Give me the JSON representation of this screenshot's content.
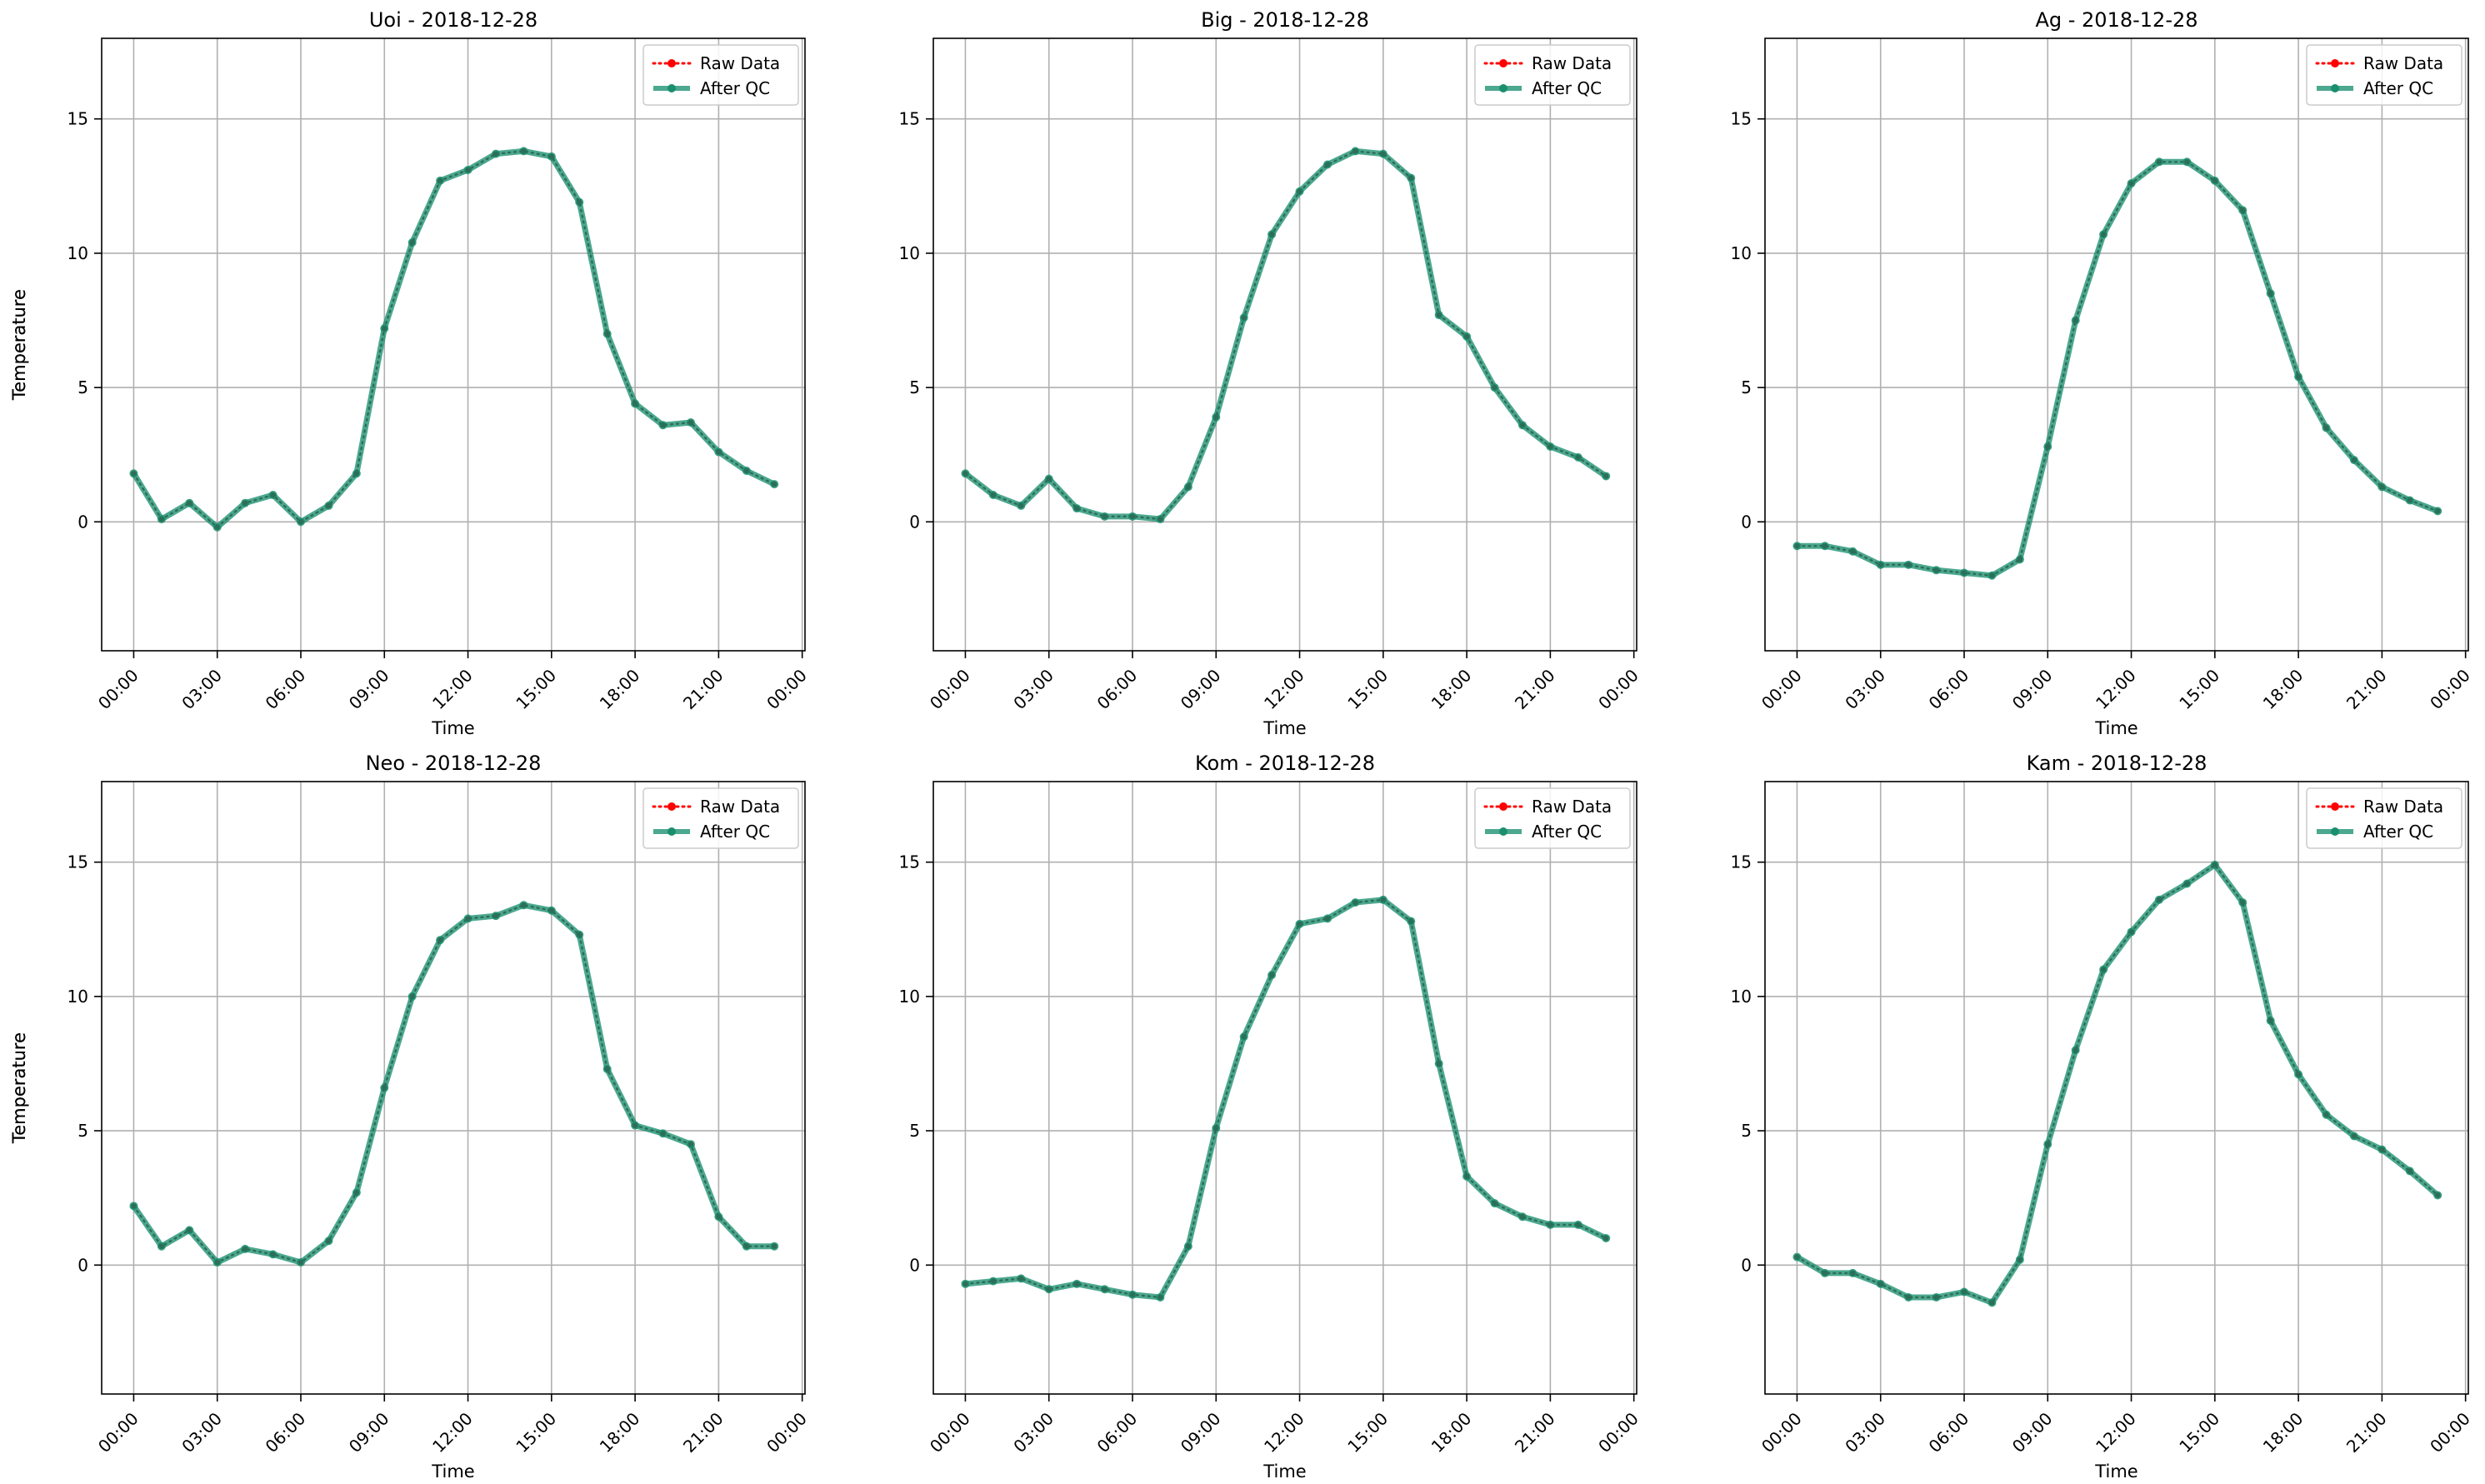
{
  "colors": {
    "raw": "#ff0000",
    "qc": "#1a8f70",
    "marker": "#2d6e56",
    "grid": "#b0b0b0",
    "axis": "#000000"
  },
  "legend": {
    "raw_label": "Raw Data",
    "qc_label": "After QC",
    "placement": "top-right"
  },
  "chart_data": [
    {
      "type": "line",
      "title": "Uoi - 2018-12-28",
      "xlabel": "Time",
      "ylabel": "Temperature",
      "grid": true,
      "ylim": [
        -4.8,
        18
      ],
      "xlim": [
        "00:00",
        "00:00"
      ],
      "x_ticks": [
        "00:00",
        "03:00",
        "06:00",
        "09:00",
        "12:00",
        "15:00",
        "18:00",
        "21:00",
        "00:00"
      ],
      "y_ticks": [
        0,
        5,
        10,
        15
      ],
      "x_hours": [
        0,
        1,
        2,
        3,
        4,
        5,
        6,
        7,
        8,
        9,
        10,
        11,
        12,
        13,
        14,
        15,
        16,
        17,
        18,
        19,
        20,
        21,
        22,
        23
      ],
      "series": [
        {
          "name": "Raw Data",
          "values": [
            1.8,
            0.1,
            0.7,
            -0.2,
            0.7,
            1.0,
            0.0,
            0.6,
            1.8,
            7.2,
            10.4,
            12.7,
            13.1,
            13.7,
            13.8,
            13.6,
            11.9,
            7.0,
            4.4,
            3.6,
            3.7,
            2.6,
            1.9,
            1.4
          ]
        },
        {
          "name": "After QC",
          "values": [
            1.8,
            0.1,
            0.7,
            -0.2,
            0.7,
            1.0,
            0.0,
            0.6,
            1.8,
            7.2,
            10.4,
            12.7,
            13.1,
            13.7,
            13.8,
            13.6,
            11.9,
            7.0,
            4.4,
            3.6,
            3.7,
            2.6,
            1.9,
            1.4
          ]
        }
      ]
    },
    {
      "type": "line",
      "title": "Big - 2018-12-28",
      "xlabel": "Time",
      "ylabel": "Temperature",
      "grid": true,
      "ylim": [
        -4.8,
        18
      ],
      "xlim": [
        "00:00",
        "00:00"
      ],
      "x_ticks": [
        "00:00",
        "03:00",
        "06:00",
        "09:00",
        "12:00",
        "15:00",
        "18:00",
        "21:00",
        "00:00"
      ],
      "y_ticks": [
        0,
        5,
        10,
        15
      ],
      "x_hours": [
        0,
        1,
        2,
        3,
        4,
        5,
        6,
        7,
        8,
        9,
        10,
        11,
        12,
        13,
        14,
        15,
        16,
        17,
        18,
        19,
        20,
        21,
        22,
        23
      ],
      "series": [
        {
          "name": "Raw Data",
          "values": [
            1.8,
            1.0,
            0.6,
            1.6,
            0.5,
            0.2,
            0.2,
            0.1,
            1.3,
            3.9,
            7.6,
            10.7,
            12.3,
            13.3,
            13.8,
            13.7,
            12.8,
            7.7,
            6.9,
            5.0,
            3.6,
            2.8,
            2.4,
            1.7
          ]
        },
        {
          "name": "After QC",
          "values": [
            1.8,
            1.0,
            0.6,
            1.6,
            0.5,
            0.2,
            0.2,
            0.1,
            1.3,
            3.9,
            7.6,
            10.7,
            12.3,
            13.3,
            13.8,
            13.7,
            12.8,
            7.7,
            6.9,
            5.0,
            3.6,
            2.8,
            2.4,
            1.7
          ]
        }
      ]
    },
    {
      "type": "line",
      "title": "Ag - 2018-12-28",
      "xlabel": "Time",
      "ylabel": "Temperature",
      "grid": true,
      "ylim": [
        -4.8,
        18
      ],
      "xlim": [
        "00:00",
        "00:00"
      ],
      "x_ticks": [
        "00:00",
        "03:00",
        "06:00",
        "09:00",
        "12:00",
        "15:00",
        "18:00",
        "21:00",
        "00:00"
      ],
      "y_ticks": [
        0,
        5,
        10,
        15
      ],
      "x_hours": [
        0,
        1,
        2,
        3,
        4,
        5,
        6,
        7,
        8,
        9,
        10,
        11,
        12,
        13,
        14,
        15,
        16,
        17,
        18,
        19,
        20,
        21,
        22,
        23
      ],
      "series": [
        {
          "name": "Raw Data",
          "values": [
            -0.9,
            -0.9,
            -1.1,
            -1.6,
            -1.6,
            -1.8,
            -1.9,
            -2.0,
            -1.4,
            2.8,
            7.5,
            10.7,
            12.6,
            13.4,
            13.4,
            12.7,
            11.6,
            8.5,
            5.4,
            3.5,
            2.3,
            1.3,
            0.8,
            0.4
          ]
        },
        {
          "name": "After QC",
          "values": [
            -0.9,
            -0.9,
            -1.1,
            -1.6,
            -1.6,
            -1.8,
            -1.9,
            -2.0,
            -1.4,
            2.8,
            7.5,
            10.7,
            12.6,
            13.4,
            13.4,
            12.7,
            11.6,
            8.5,
            5.4,
            3.5,
            2.3,
            1.3,
            0.8,
            0.4
          ]
        }
      ]
    },
    {
      "type": "line",
      "title": "Neo - 2018-12-28",
      "xlabel": "Time",
      "ylabel": "Temperature",
      "grid": true,
      "ylim": [
        -4.8,
        18
      ],
      "xlim": [
        "00:00",
        "00:00"
      ],
      "x_ticks": [
        "00:00",
        "03:00",
        "06:00",
        "09:00",
        "12:00",
        "15:00",
        "18:00",
        "21:00",
        "00:00"
      ],
      "y_ticks": [
        0,
        5,
        10,
        15
      ],
      "x_hours": [
        0,
        1,
        2,
        3,
        4,
        5,
        6,
        7,
        8,
        9,
        10,
        11,
        12,
        13,
        14,
        15,
        16,
        17,
        18,
        19,
        20,
        21,
        22,
        23
      ],
      "series": [
        {
          "name": "Raw Data",
          "values": [
            2.2,
            0.7,
            1.3,
            0.1,
            0.6,
            0.4,
            0.1,
            0.9,
            2.7,
            6.6,
            10.0,
            12.1,
            12.9,
            13.0,
            13.4,
            13.2,
            12.3,
            7.3,
            5.2,
            4.9,
            4.5,
            1.8,
            0.7,
            0.7
          ]
        },
        {
          "name": "After QC",
          "values": [
            2.2,
            0.7,
            1.3,
            0.1,
            0.6,
            0.4,
            0.1,
            0.9,
            2.7,
            6.6,
            10.0,
            12.1,
            12.9,
            13.0,
            13.4,
            13.2,
            12.3,
            7.3,
            5.2,
            4.9,
            4.5,
            1.8,
            0.7,
            0.7
          ]
        }
      ]
    },
    {
      "type": "line",
      "title": "Kom - 2018-12-28",
      "xlabel": "Time",
      "ylabel": "Temperature",
      "grid": true,
      "ylim": [
        -4.8,
        18
      ],
      "xlim": [
        "00:00",
        "00:00"
      ],
      "x_ticks": [
        "00:00",
        "03:00",
        "06:00",
        "09:00",
        "12:00",
        "15:00",
        "18:00",
        "21:00",
        "00:00"
      ],
      "y_ticks": [
        0,
        5,
        10,
        15
      ],
      "x_hours": [
        0,
        1,
        2,
        3,
        4,
        5,
        6,
        7,
        8,
        9,
        10,
        11,
        12,
        13,
        14,
        15,
        16,
        17,
        18,
        19,
        20,
        21,
        22,
        23
      ],
      "series": [
        {
          "name": "Raw Data",
          "values": [
            -0.7,
            -0.6,
            -0.5,
            -0.9,
            -0.7,
            -0.9,
            -1.1,
            -1.2,
            0.7,
            5.1,
            8.5,
            10.8,
            12.7,
            12.9,
            13.5,
            13.6,
            12.8,
            7.5,
            3.3,
            2.3,
            1.8,
            1.5,
            1.5,
            1.0
          ]
        },
        {
          "name": "After QC",
          "values": [
            -0.7,
            -0.6,
            -0.5,
            -0.9,
            -0.7,
            -0.9,
            -1.1,
            -1.2,
            0.7,
            5.1,
            8.5,
            10.8,
            12.7,
            12.9,
            13.5,
            13.6,
            12.8,
            7.5,
            3.3,
            2.3,
            1.8,
            1.5,
            1.5,
            1.0
          ]
        }
      ]
    },
    {
      "type": "line",
      "title": "Kam - 2018-12-28",
      "xlabel": "Time",
      "ylabel": "Temperature",
      "grid": true,
      "ylim": [
        -4.8,
        18
      ],
      "xlim": [
        "00:00",
        "00:00"
      ],
      "x_ticks": [
        "00:00",
        "03:00",
        "06:00",
        "09:00",
        "12:00",
        "15:00",
        "18:00",
        "21:00",
        "00:00"
      ],
      "y_ticks": [
        0,
        5,
        10,
        15
      ],
      "x_hours": [
        0,
        1,
        2,
        3,
        4,
        5,
        6,
        7,
        8,
        9,
        10,
        11,
        12,
        13,
        14,
        15,
        16,
        17,
        18,
        19,
        20,
        21,
        22,
        23
      ],
      "series": [
        {
          "name": "Raw Data",
          "values": [
            0.3,
            -0.3,
            -0.3,
            -0.7,
            -1.2,
            -1.2,
            -1.0,
            -1.4,
            0.2,
            4.5,
            8.0,
            11.0,
            12.4,
            13.6,
            14.2,
            14.9,
            13.5,
            9.1,
            7.1,
            5.6,
            4.8,
            4.3,
            3.5,
            2.6
          ]
        },
        {
          "name": "After QC",
          "values": [
            0.3,
            -0.3,
            -0.3,
            -0.7,
            -1.2,
            -1.2,
            -1.0,
            -1.4,
            0.2,
            4.5,
            8.0,
            11.0,
            12.4,
            13.6,
            14.2,
            14.9,
            13.5,
            9.1,
            7.1,
            5.6,
            4.8,
            4.3,
            3.5,
            2.6
          ]
        }
      ]
    }
  ]
}
